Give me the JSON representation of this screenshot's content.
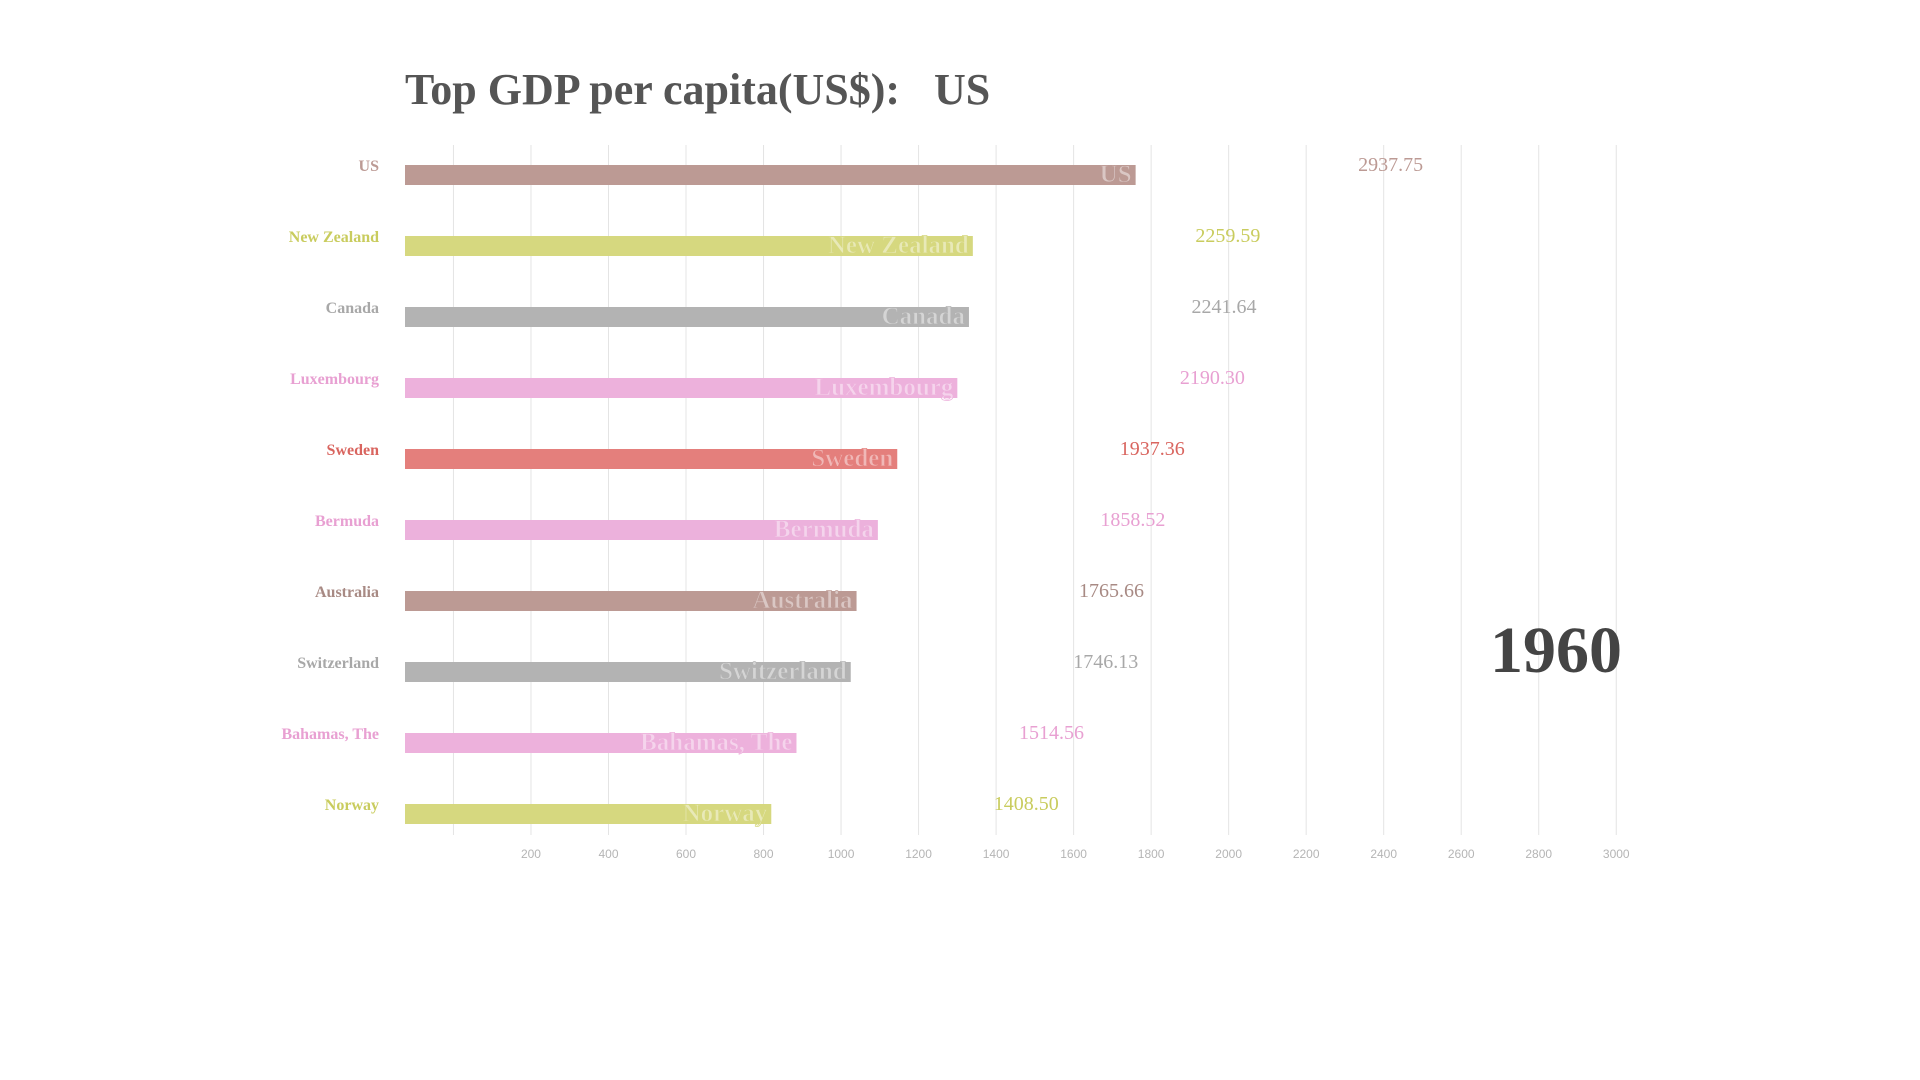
{
  "chart_data": {
    "type": "bar",
    "orientation": "horizontal",
    "title_prefix": "Top GDP per capita(US$):",
    "title_leader": "US",
    "year": "1960",
    "categories": [
      "US",
      "New Zealand",
      "Canada",
      "Luxembourg",
      "Sweden",
      "Bermuda",
      "Australia",
      "Switzerland",
      "Bahamas, The",
      "Norway"
    ],
    "values": [
      2937.75,
      2259.59,
      2241.64,
      2190.3,
      1937.36,
      1858.52,
      1765.66,
      1746.13,
      1514.56,
      1408.5
    ],
    "value_labels": [
      "2937.75",
      "2259.59",
      "2241.64",
      "2190.30",
      "1937.36",
      "1858.52",
      "1765.66",
      "1746.13",
      "1514.56",
      "1408.50"
    ],
    "bar_values": [
      1760,
      1340,
      1330,
      1300,
      1145,
      1095,
      1040,
      1025,
      885,
      820
    ],
    "colors": [
      "#bc9a94",
      "#d6d87f",
      "#b3b3b3",
      "#edb1dc",
      "#e47f7c",
      "#ecb1dc",
      "#bc9a94",
      "#b3b3b3",
      "#edb1dc",
      "#d6d87f"
    ],
    "label_colors": [
      "#bc9a94",
      "#c9cc5e",
      "#a8a8a8",
      "#e8a0d2",
      "#d9655f",
      "#e8a0d2",
      "#a88a84",
      "#a8a8a8",
      "#e8a0d2",
      "#c9cc5e"
    ],
    "xticks": [
      "200",
      "400",
      "600",
      "800",
      "1000",
      "1200",
      "1400",
      "1600",
      "1800",
      "2000",
      "2200",
      "2400",
      "2600",
      "2800",
      "3000"
    ],
    "xlim": [
      -125,
      3000
    ],
    "grid": true,
    "legend": "none"
  }
}
